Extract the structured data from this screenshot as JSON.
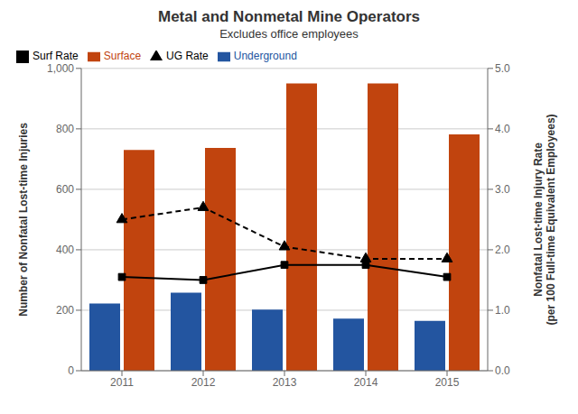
{
  "chart_data": {
    "type": "bar",
    "title": "Metal and Nonmetal Mine Operators",
    "subtitle": "Excludes office employees",
    "categories": [
      "2011",
      "2012",
      "2013",
      "2014",
      "2015"
    ],
    "ylabel": "Number of Nonfatal Lost-time Injuries",
    "y2label": "Nonfatal Lost-time Injury Rate\n(per 100 Full-time Equivalent Employees)",
    "ylim": [
      0,
      1000
    ],
    "yticks": [
      0,
      200,
      400,
      600,
      800,
      {
        "value": 1000,
        "label": "1,000"
      }
    ],
    "y2lim": [
      0.0,
      5.0
    ],
    "y2ticks": [
      {
        "value": 0.0,
        "label": "0.0"
      },
      {
        "value": 1.0,
        "label": "1.0"
      },
      {
        "value": 2.0,
        "label": "2.0"
      },
      {
        "value": 3.0,
        "label": "3.0"
      },
      {
        "value": 4.0,
        "label": "4.0"
      },
      {
        "value": 5.0,
        "label": "5.0"
      }
    ],
    "grid": true,
    "legend": "upper left",
    "series": [
      {
        "name": "Underground",
        "color": "#2355a0",
        "values": [
          222,
          258,
          202,
          172,
          165
        ]
      },
      {
        "name": "Surface",
        "color": "#c1440e",
        "values": [
          730,
          737,
          950,
          950,
          782
        ]
      },
      {
        "name": "UG Rate",
        "type": "line",
        "axis": "y2",
        "color": "#000000",
        "marker": "triangle",
        "line_style": "dashed",
        "values": [
          2.5,
          2.7,
          2.05,
          1.85,
          1.85
        ]
      },
      {
        "name": "Surf Rate",
        "type": "line",
        "axis": "y2",
        "color": "#000000",
        "marker": "square",
        "line_style": "solid",
        "values": [
          1.55,
          1.5,
          1.75,
          1.75,
          1.55
        ]
      }
    ]
  }
}
